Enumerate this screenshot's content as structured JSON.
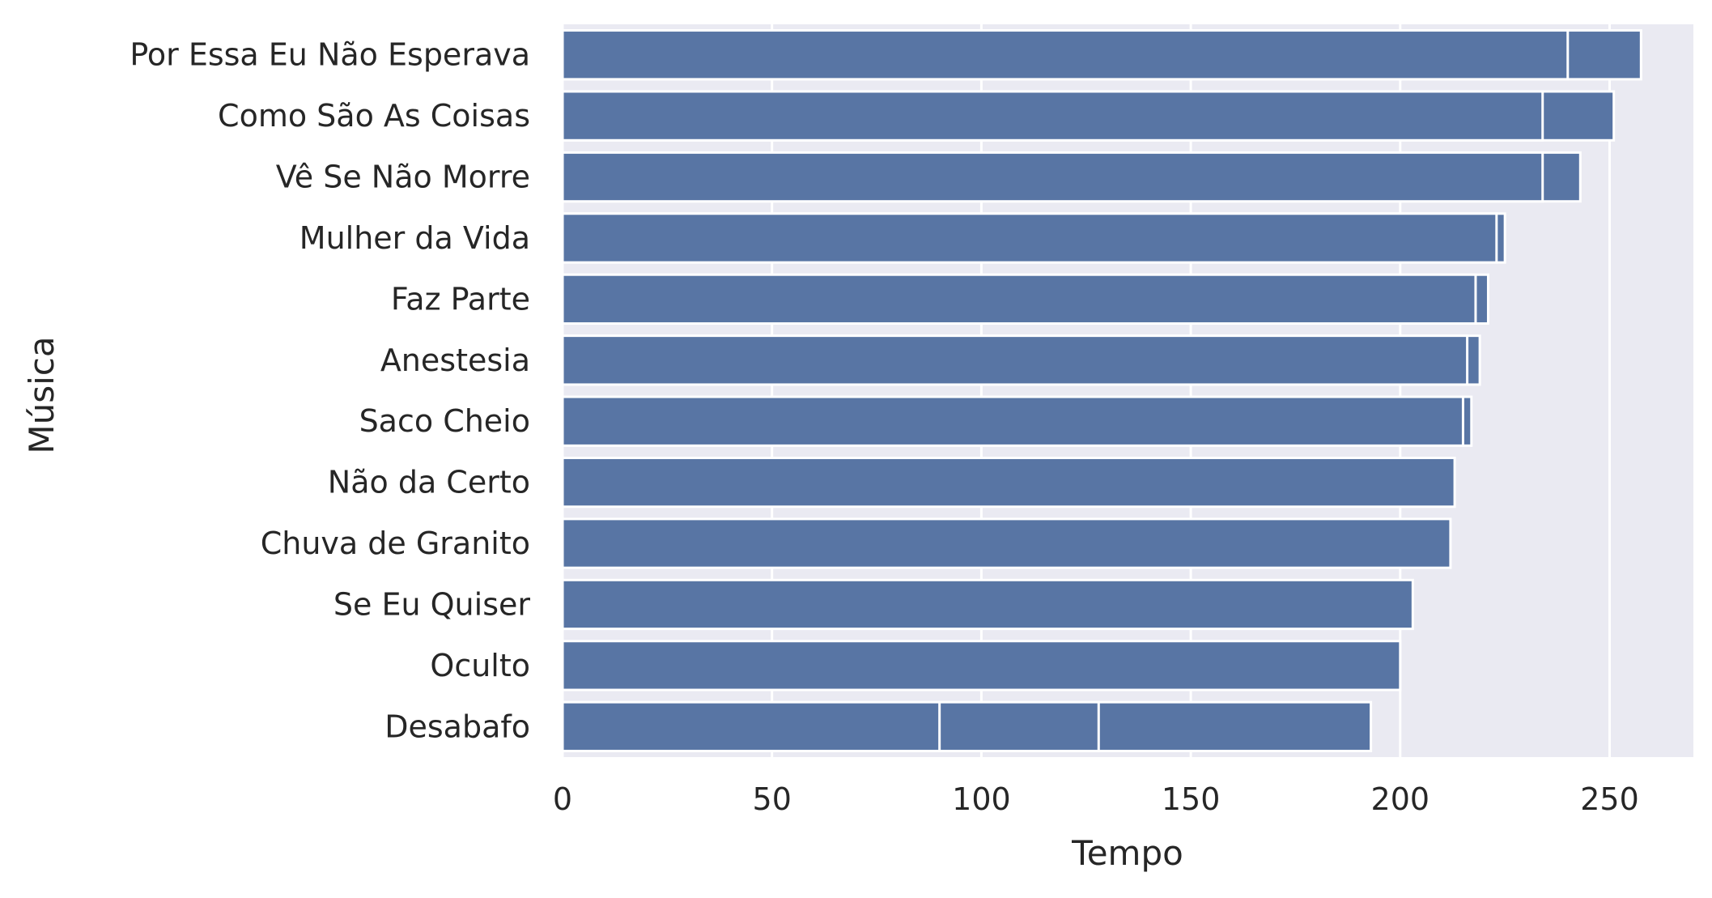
{
  "chart_data": {
    "type": "bar",
    "orientation": "horizontal",
    "xlabel": "Tempo",
    "ylabel": "Música",
    "xlim": [
      0,
      270
    ],
    "xticks": [
      0,
      50,
      100,
      150,
      200,
      250
    ],
    "grid": true,
    "bar_color": "#5875a4",
    "background_color": "#eaeaf2",
    "grid_color": "#ffffff",
    "categories": [
      "Por Essa Eu Não Esperava",
      "Como São As Coisas",
      "Vê Se Não Morre",
      "Mulher da Vida",
      "Faz Parte",
      "Anestesia",
      "Saco Cheio",
      "Não da Certo",
      "Chuva de Granito",
      "Se Eu Quiser",
      "Oculto",
      "Desabafo"
    ],
    "values": [
      257.5,
      251,
      243,
      225,
      221,
      219,
      217,
      213,
      212,
      203,
      200,
      193
    ],
    "overlapping_segments": [
      [
        240,
        257.5
      ],
      [
        234,
        251
      ],
      [
        234,
        243
      ],
      [
        223,
        225
      ],
      [
        218,
        221
      ],
      [
        216,
        219
      ],
      [
        215,
        217
      ],
      [
        213
      ],
      [
        212
      ],
      [
        203
      ],
      [
        200
      ],
      [
        90,
        128,
        193
      ]
    ]
  }
}
